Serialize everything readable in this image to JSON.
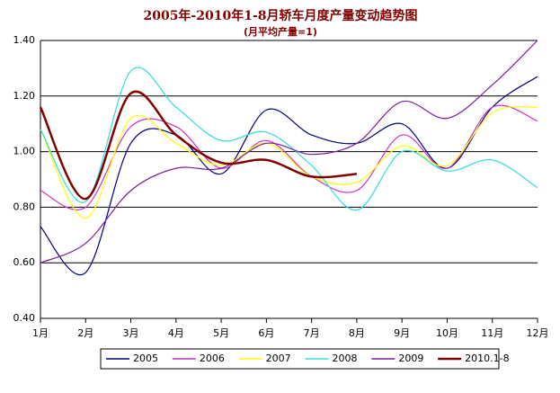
{
  "chart_data": {
    "type": "line",
    "title": "2005年-2010年1-8月轿车月度产量变动趋势图",
    "subtitle": "(月平均产量=1)",
    "categories": [
      "1月",
      "2月",
      "3月",
      "4月",
      "5月",
      "6月",
      "7月",
      "8月",
      "9月",
      "10月",
      "11月",
      "12月"
    ],
    "ylim": [
      0.4,
      1.4
    ],
    "yticks": [
      {
        "value": 0.4,
        "label": "0.40"
      },
      {
        "value": 0.6,
        "label": "0.60"
      },
      {
        "value": 0.8,
        "label": "0.80"
      },
      {
        "value": 1.0,
        "label": "1.00"
      },
      {
        "value": 1.2,
        "label": "1.20"
      },
      {
        "value": 1.4,
        "label": "1.40"
      }
    ],
    "grid": true,
    "legend": "bottom",
    "series": [
      {
        "name": "2005",
        "color": "#000080",
        "values": [
          0.73,
          0.565,
          1.03,
          1.06,
          0.92,
          1.15,
          1.06,
          1.03,
          1.1,
          0.94,
          1.16,
          1.27
        ]
      },
      {
        "name": "2006",
        "color": "#cc33cc",
        "values": [
          0.86,
          0.8,
          1.09,
          1.09,
          0.94,
          1.04,
          0.91,
          0.86,
          1.06,
          0.94,
          1.16,
          1.11
        ]
      },
      {
        "name": "2007",
        "color": "#ffff00",
        "values": [
          1.08,
          0.76,
          1.12,
          1.03,
          0.95,
          1.03,
          0.91,
          0.89,
          1.02,
          0.95,
          1.14,
          1.16
        ]
      },
      {
        "name": "2008",
        "color": "#33dddd",
        "values": [
          1.08,
          0.82,
          1.29,
          1.16,
          1.04,
          1.07,
          0.95,
          0.79,
          1.0,
          0.93,
          0.97,
          0.87
        ]
      },
      {
        "name": "2009",
        "color": "#7a1fa0",
        "values": [
          0.6,
          0.67,
          0.86,
          0.94,
          0.94,
          1.03,
          0.99,
          1.03,
          1.18,
          1.12,
          1.24,
          1.4
        ]
      },
      {
        "name": "2010.1-8",
        "color": "#800000",
        "values": [
          1.16,
          0.83,
          1.21,
          1.06,
          0.96,
          0.97,
          0.91,
          0.92,
          null,
          null,
          null,
          null
        ]
      }
    ]
  }
}
